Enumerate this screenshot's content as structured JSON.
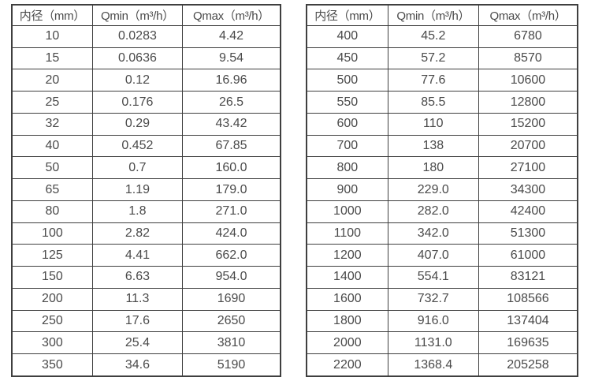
{
  "tables": [
    {
      "name": "small-diameter-flow-table",
      "header": [
        "内径（mm）",
        "Qmin（m³/h）",
        "Qmax（m³/h）"
      ],
      "rows": [
        [
          "10",
          "0.0283",
          "4.42"
        ],
        [
          "15",
          "0.0636",
          "9.54"
        ],
        [
          "20",
          "0.12",
          "16.96"
        ],
        [
          "25",
          "0.176",
          "26.5"
        ],
        [
          "32",
          "0.29",
          "43.42"
        ],
        [
          "40",
          "0.452",
          "67.85"
        ],
        [
          "50",
          "0.7",
          "160.0"
        ],
        [
          "65",
          "1.19",
          "179.0"
        ],
        [
          "80",
          "1.8",
          "271.0"
        ],
        [
          "100",
          "2.82",
          "424.0"
        ],
        [
          "125",
          "4.41",
          "662.0"
        ],
        [
          "150",
          "6.63",
          "954.0"
        ],
        [
          "200",
          "11.3",
          "1690"
        ],
        [
          "250",
          "17.6",
          "2650"
        ],
        [
          "300",
          "25.4",
          "3810"
        ],
        [
          "350",
          "34.6",
          "5190"
        ]
      ]
    },
    {
      "name": "large-diameter-flow-table",
      "header": [
        "内径（mm）",
        "Qmin（m³/h）",
        "Qmax（m³/h）"
      ],
      "rows": [
        [
          "400",
          "45.2",
          "6780"
        ],
        [
          "450",
          "57.2",
          "8570"
        ],
        [
          "500",
          "77.6",
          "10600"
        ],
        [
          "550",
          "85.5",
          "12800"
        ],
        [
          "600",
          "110",
          "15200"
        ],
        [
          "700",
          "138",
          "20700"
        ],
        [
          "800",
          "180",
          "27100"
        ],
        [
          "900",
          "229.0",
          "34300"
        ],
        [
          "1000",
          "282.0",
          "42400"
        ],
        [
          "1100",
          "342.0",
          "51300"
        ],
        [
          "1200",
          "407.0",
          "61000"
        ],
        [
          "1400",
          "554.1",
          "83121"
        ],
        [
          "1600",
          "732.7",
          "108566"
        ],
        [
          "1800",
          "916.0",
          "137404"
        ],
        [
          "2000",
          "1131.0",
          "169635"
        ],
        [
          "2200",
          "1368.4",
          "205258"
        ]
      ]
    }
  ],
  "colors": {
    "border": "#3f3f3f",
    "text": "#4a4a4a",
    "background": "#ffffff"
  }
}
